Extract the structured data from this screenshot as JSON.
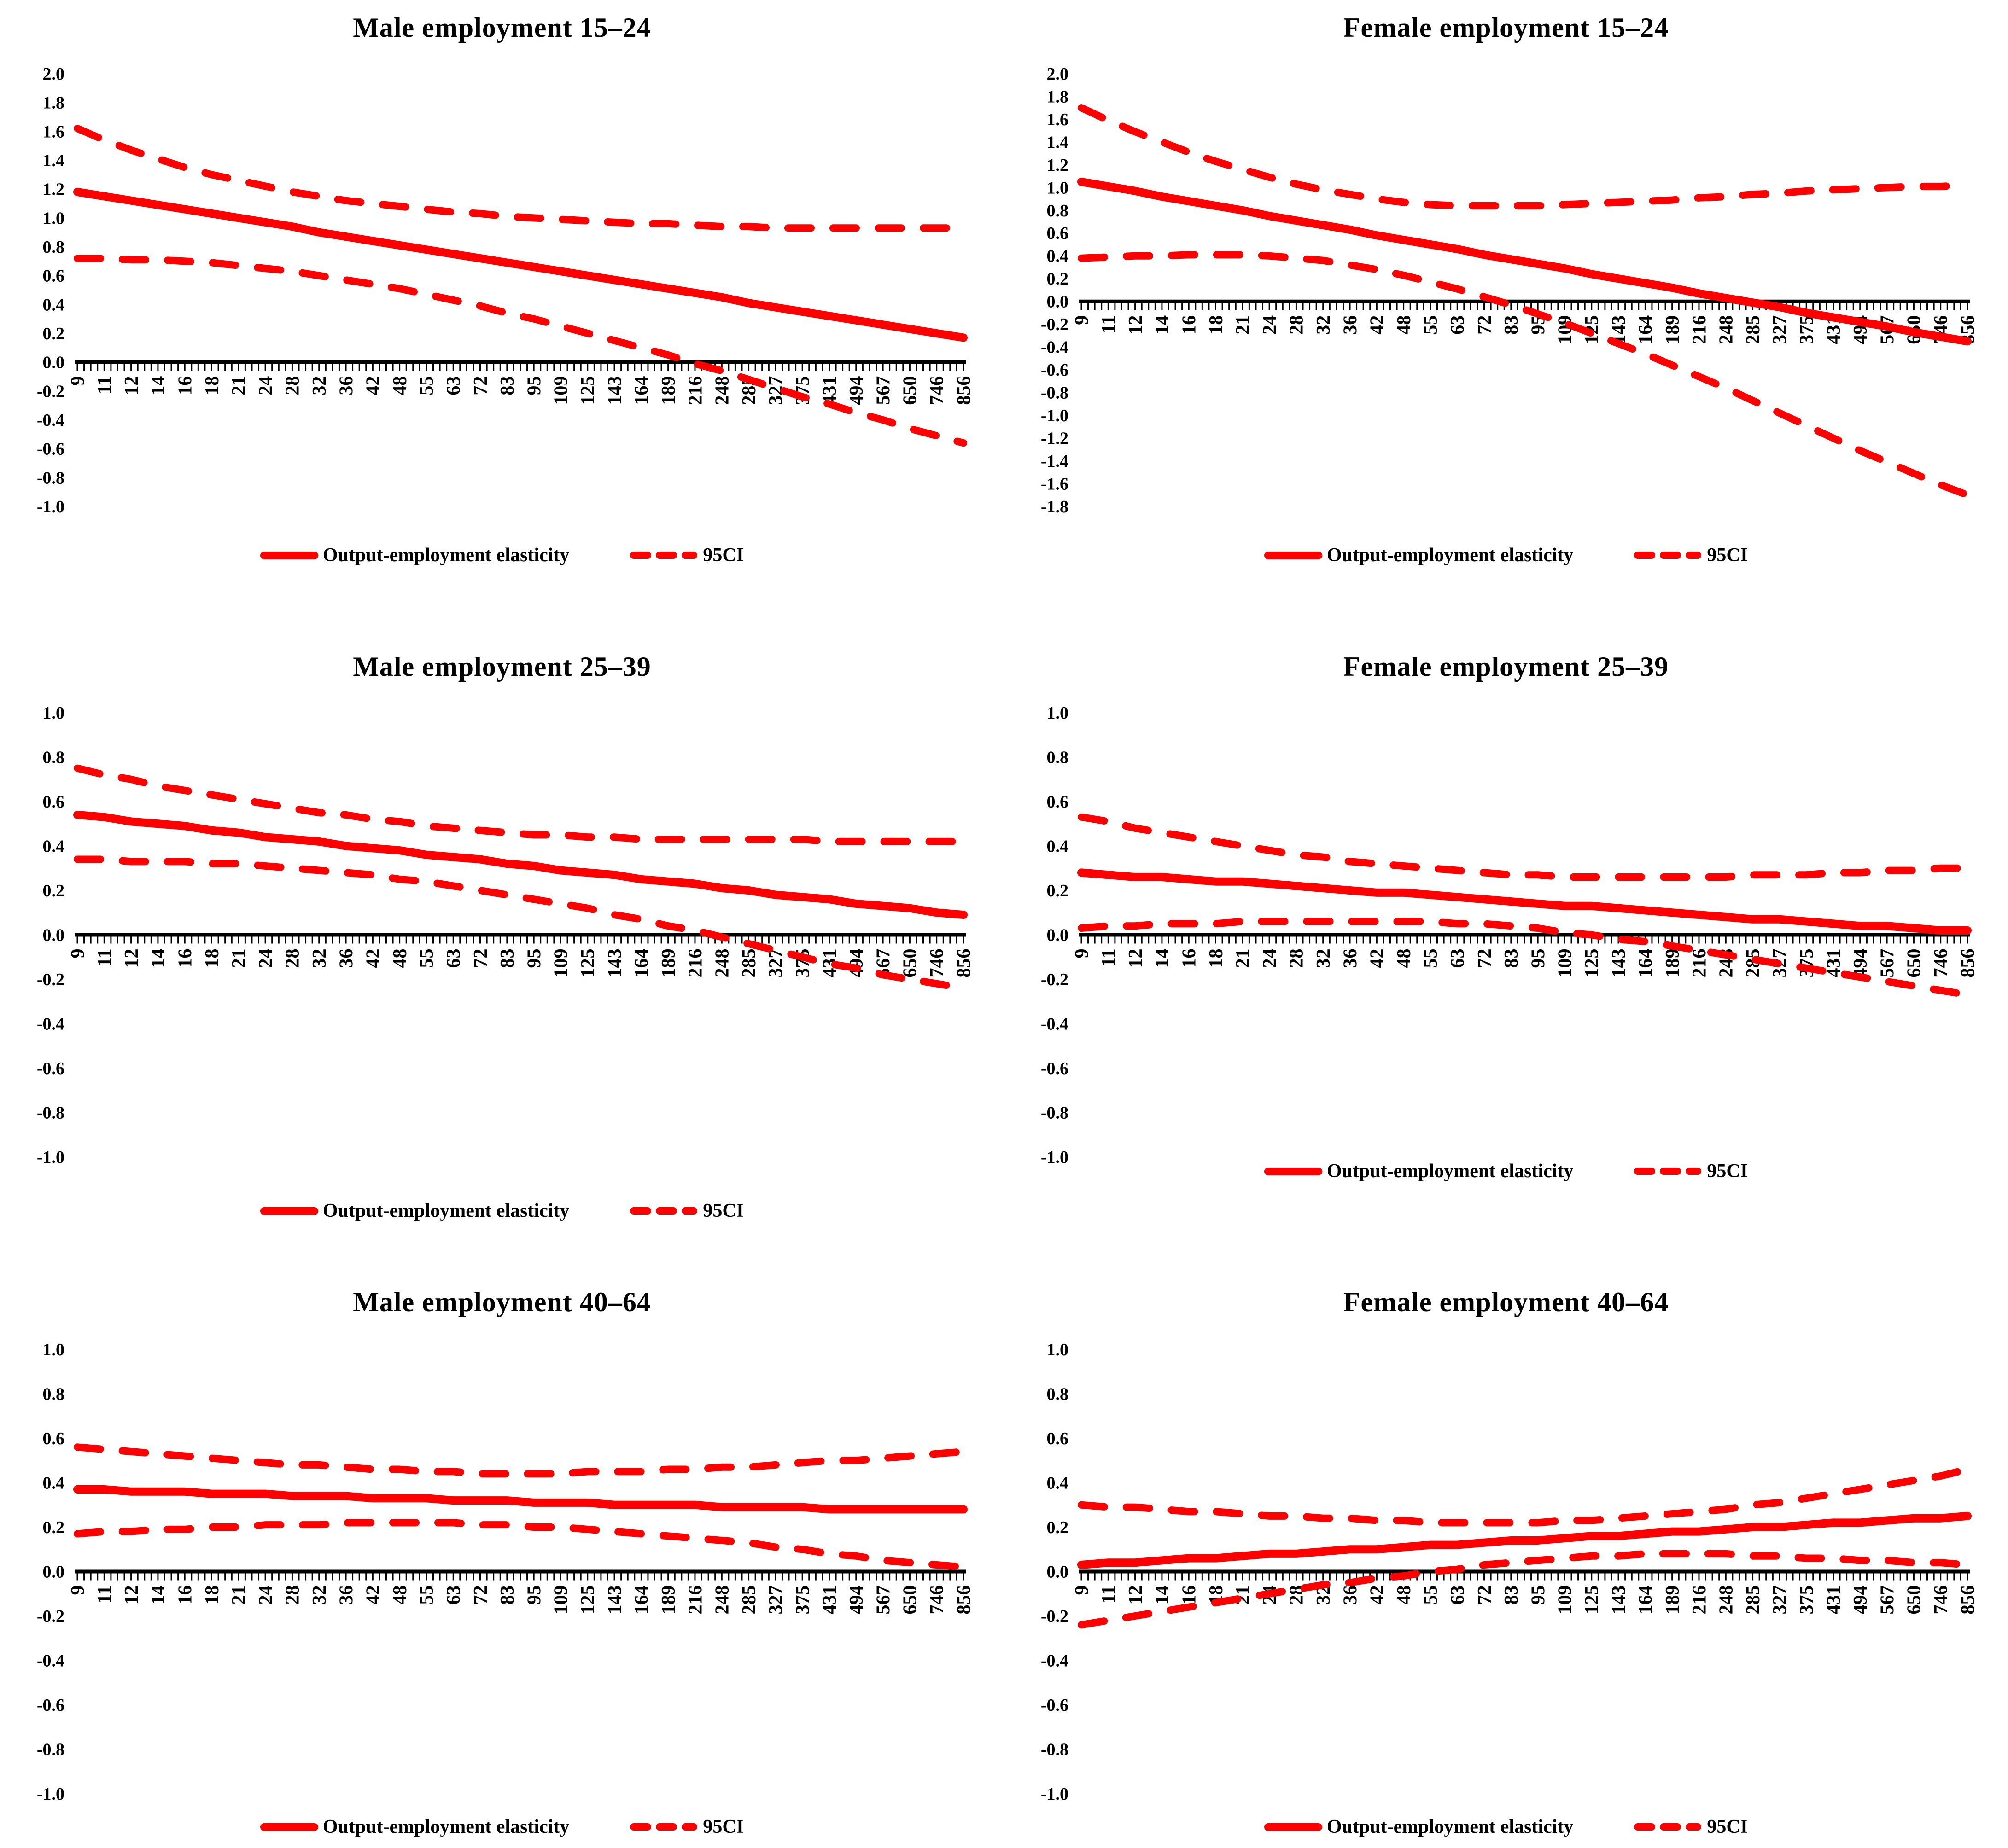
{
  "page": {
    "background": "#ffffff"
  },
  "chart_data": {
    "type": "line",
    "line_color": "#ff0000",
    "axis_color": "#000000",
    "text_color": "#000000",
    "grid": false,
    "xlabel_rotation": -90,
    "legend": {
      "position": "bottom",
      "series_label": "Output-employment elasticity",
      "ci_label": "95CI"
    },
    "categories": [
      9,
      11,
      12,
      14,
      16,
      18,
      21,
      24,
      28,
      32,
      36,
      42,
      48,
      55,
      63,
      72,
      83,
      95,
      109,
      125,
      143,
      164,
      189,
      216,
      248,
      285,
      327,
      375,
      431,
      494,
      567,
      650,
      746,
      856
    ],
    "charts": [
      {
        "title": "Male employment 15–24",
        "ylim": [
          -1.0,
          2.0
        ],
        "ystep": 0.2,
        "series": {
          "elasticity": [
            1.18,
            1.15,
            1.12,
            1.09,
            1.06,
            1.03,
            1.0,
            0.97,
            0.94,
            0.9,
            0.87,
            0.84,
            0.81,
            0.78,
            0.75,
            0.72,
            0.69,
            0.66,
            0.63,
            0.6,
            0.57,
            0.54,
            0.51,
            0.48,
            0.45,
            0.41,
            0.38,
            0.35,
            0.32,
            0.29,
            0.26,
            0.23,
            0.2,
            0.17
          ],
          "ci_upper": [
            1.62,
            1.54,
            1.47,
            1.41,
            1.35,
            1.3,
            1.26,
            1.22,
            1.18,
            1.15,
            1.12,
            1.1,
            1.08,
            1.06,
            1.04,
            1.03,
            1.01,
            1.0,
            0.99,
            0.98,
            0.97,
            0.96,
            0.96,
            0.95,
            0.94,
            0.94,
            0.93,
            0.93,
            0.93,
            0.93,
            0.93,
            0.93,
            0.93,
            0.93
          ],
          "ci_lower": [
            0.72,
            0.72,
            0.71,
            0.71,
            0.7,
            0.69,
            0.67,
            0.65,
            0.63,
            0.6,
            0.57,
            0.54,
            0.51,
            0.47,
            0.43,
            0.39,
            0.34,
            0.3,
            0.25,
            0.2,
            0.15,
            0.1,
            0.05,
            -0.01,
            -0.06,
            -0.12,
            -0.18,
            -0.24,
            -0.29,
            -0.35,
            -0.4,
            -0.46,
            -0.51,
            -0.56
          ]
        }
      },
      {
        "title": "Female employment 15–24",
        "ylim": [
          -1.8,
          2.0
        ],
        "ystep": 0.2,
        "series": {
          "elasticity": [
            1.05,
            1.01,
            0.97,
            0.92,
            0.88,
            0.84,
            0.8,
            0.75,
            0.71,
            0.67,
            0.63,
            0.58,
            0.54,
            0.5,
            0.46,
            0.41,
            0.37,
            0.33,
            0.29,
            0.24,
            0.2,
            0.16,
            0.12,
            0.07,
            0.03,
            -0.01,
            -0.05,
            -0.1,
            -0.14,
            -0.18,
            -0.22,
            -0.27,
            -0.31,
            -0.35
          ],
          "ci_upper": [
            1.7,
            1.59,
            1.49,
            1.4,
            1.31,
            1.23,
            1.16,
            1.09,
            1.03,
            0.98,
            0.94,
            0.9,
            0.87,
            0.85,
            0.84,
            0.84,
            0.84,
            0.84,
            0.85,
            0.86,
            0.87,
            0.88,
            0.89,
            0.91,
            0.92,
            0.94,
            0.95,
            0.97,
            0.98,
            0.99,
            1.0,
            1.01,
            1.01,
            1.02
          ],
          "ci_lower": [
            0.38,
            0.39,
            0.4,
            0.4,
            0.41,
            0.41,
            0.41,
            0.4,
            0.38,
            0.36,
            0.32,
            0.28,
            0.23,
            0.17,
            0.11,
            0.04,
            -0.03,
            -0.11,
            -0.19,
            -0.28,
            -0.37,
            -0.46,
            -0.56,
            -0.66,
            -0.76,
            -0.87,
            -0.98,
            -1.09,
            -1.2,
            -1.31,
            -1.41,
            -1.51,
            -1.61,
            -1.7
          ]
        }
      },
      {
        "title": "Male employment 25–39",
        "ylim": [
          -1.0,
          1.0
        ],
        "ystep": 0.2,
        "series": {
          "elasticity": [
            0.54,
            0.53,
            0.51,
            0.5,
            0.49,
            0.47,
            0.46,
            0.44,
            0.43,
            0.42,
            0.4,
            0.39,
            0.38,
            0.36,
            0.35,
            0.34,
            0.32,
            0.31,
            0.29,
            0.28,
            0.27,
            0.25,
            0.24,
            0.23,
            0.21,
            0.2,
            0.18,
            0.17,
            0.16,
            0.14,
            0.13,
            0.12,
            0.1,
            0.09
          ],
          "ci_upper": [
            0.75,
            0.72,
            0.7,
            0.67,
            0.65,
            0.63,
            0.61,
            0.59,
            0.57,
            0.55,
            0.54,
            0.52,
            0.51,
            0.49,
            0.48,
            0.47,
            0.46,
            0.45,
            0.45,
            0.44,
            0.44,
            0.43,
            0.43,
            0.43,
            0.43,
            0.43,
            0.43,
            0.43,
            0.42,
            0.42,
            0.42,
            0.42,
            0.42,
            0.42
          ],
          "ci_lower": [
            0.34,
            0.34,
            0.33,
            0.33,
            0.33,
            0.32,
            0.32,
            0.31,
            0.3,
            0.29,
            0.28,
            0.27,
            0.25,
            0.24,
            0.22,
            0.2,
            0.18,
            0.16,
            0.14,
            0.12,
            0.09,
            0.07,
            0.04,
            0.02,
            -0.01,
            -0.04,
            -0.07,
            -0.1,
            -0.13,
            -0.15,
            -0.18,
            -0.2,
            -0.22,
            -0.24
          ]
        }
      },
      {
        "title": "Female employment 25–39",
        "ylim": [
          -1.0,
          1.0
        ],
        "ystep": 0.2,
        "series": {
          "elasticity": [
            0.28,
            0.27,
            0.26,
            0.26,
            0.25,
            0.24,
            0.24,
            0.23,
            0.22,
            0.21,
            0.2,
            0.19,
            0.19,
            0.18,
            0.17,
            0.16,
            0.15,
            0.14,
            0.13,
            0.13,
            0.12,
            0.11,
            0.1,
            0.09,
            0.08,
            0.07,
            0.07,
            0.06,
            0.05,
            0.04,
            0.04,
            0.03,
            0.02,
            0.02
          ],
          "ci_upper": [
            0.53,
            0.51,
            0.48,
            0.46,
            0.44,
            0.42,
            0.4,
            0.38,
            0.36,
            0.35,
            0.33,
            0.32,
            0.31,
            0.3,
            0.29,
            0.28,
            0.27,
            0.27,
            0.26,
            0.26,
            0.26,
            0.26,
            0.26,
            0.26,
            0.26,
            0.27,
            0.27,
            0.27,
            0.28,
            0.28,
            0.29,
            0.29,
            0.3,
            0.3
          ],
          "ci_lower": [
            0.03,
            0.04,
            0.04,
            0.05,
            0.05,
            0.05,
            0.06,
            0.06,
            0.06,
            0.06,
            0.06,
            0.06,
            0.06,
            0.06,
            0.05,
            0.05,
            0.04,
            0.03,
            0.01,
            0.0,
            -0.02,
            -0.03,
            -0.05,
            -0.07,
            -0.09,
            -0.11,
            -0.13,
            -0.15,
            -0.17,
            -0.19,
            -0.21,
            -0.23,
            -0.25,
            -0.27
          ]
        }
      },
      {
        "title": "Male employment 40–64",
        "ylim": [
          -1.0,
          1.0
        ],
        "ystep": 0.2,
        "series": {
          "elasticity": [
            0.37,
            0.37,
            0.36,
            0.36,
            0.36,
            0.35,
            0.35,
            0.35,
            0.34,
            0.34,
            0.34,
            0.33,
            0.33,
            0.33,
            0.32,
            0.32,
            0.32,
            0.31,
            0.31,
            0.31,
            0.3,
            0.3,
            0.3,
            0.3,
            0.29,
            0.29,
            0.29,
            0.29,
            0.28,
            0.28,
            0.28,
            0.28,
            0.28,
            0.28
          ],
          "ci_upper": [
            0.56,
            0.55,
            0.54,
            0.53,
            0.52,
            0.51,
            0.5,
            0.49,
            0.48,
            0.48,
            0.47,
            0.46,
            0.46,
            0.45,
            0.45,
            0.44,
            0.44,
            0.44,
            0.44,
            0.45,
            0.45,
            0.45,
            0.46,
            0.46,
            0.47,
            0.47,
            0.48,
            0.49,
            0.5,
            0.5,
            0.51,
            0.52,
            0.53,
            0.54
          ],
          "ci_lower": [
            0.17,
            0.18,
            0.18,
            0.19,
            0.19,
            0.2,
            0.2,
            0.21,
            0.21,
            0.21,
            0.22,
            0.22,
            0.22,
            0.22,
            0.22,
            0.21,
            0.21,
            0.2,
            0.2,
            0.19,
            0.18,
            0.17,
            0.16,
            0.15,
            0.14,
            0.13,
            0.11,
            0.1,
            0.08,
            0.07,
            0.05,
            0.04,
            0.03,
            0.02
          ]
        }
      },
      {
        "title": "Female employment 40–64",
        "ylim": [
          -1.0,
          1.0
        ],
        "ystep": 0.2,
        "series": {
          "elasticity": [
            0.03,
            0.04,
            0.04,
            0.05,
            0.06,
            0.06,
            0.07,
            0.08,
            0.08,
            0.09,
            0.1,
            0.1,
            0.11,
            0.12,
            0.12,
            0.13,
            0.14,
            0.14,
            0.15,
            0.16,
            0.16,
            0.17,
            0.18,
            0.18,
            0.19,
            0.2,
            0.2,
            0.21,
            0.22,
            0.22,
            0.23,
            0.24,
            0.24,
            0.25
          ],
          "ci_upper": [
            0.3,
            0.29,
            0.29,
            0.28,
            0.27,
            0.27,
            0.26,
            0.25,
            0.25,
            0.24,
            0.24,
            0.23,
            0.23,
            0.22,
            0.22,
            0.22,
            0.22,
            0.22,
            0.23,
            0.23,
            0.24,
            0.25,
            0.26,
            0.27,
            0.28,
            0.3,
            0.31,
            0.33,
            0.35,
            0.37,
            0.39,
            0.41,
            0.43,
            0.46
          ],
          "ci_lower": [
            -0.24,
            -0.22,
            -0.2,
            -0.18,
            -0.16,
            -0.14,
            -0.12,
            -0.1,
            -0.08,
            -0.06,
            -0.05,
            -0.03,
            -0.02,
            0.0,
            0.01,
            0.03,
            0.04,
            0.05,
            0.06,
            0.07,
            0.07,
            0.08,
            0.08,
            0.08,
            0.08,
            0.07,
            0.07,
            0.06,
            0.06,
            0.05,
            0.05,
            0.04,
            0.04,
            0.03
          ]
        }
      }
    ]
  }
}
